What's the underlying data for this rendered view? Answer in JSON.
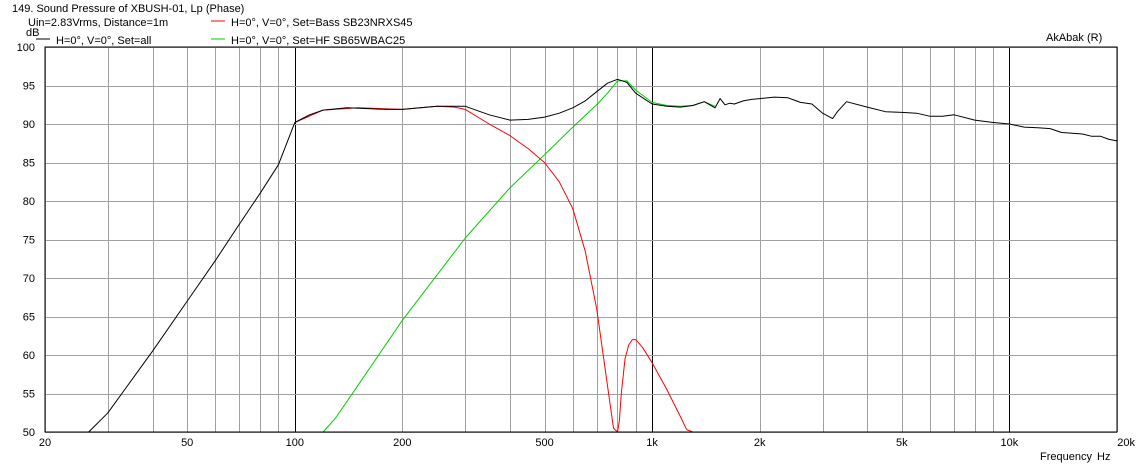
{
  "chart_data": {
    "type": "line",
    "title": "149. Sound Pressure of XBUSH-01, Lp (Phase)",
    "subtitle": "Uin=2.83Vrms, Distance=1m",
    "ylabel": "dB",
    "xlabel": "Frequency",
    "xunit": "Hz",
    "watermark": "AkAbak (R)",
    "xscale": "log",
    "xlim": [
      20,
      20000
    ],
    "ylim": [
      50,
      100
    ],
    "grid": true,
    "legend_position": "top-left",
    "x_ticks": [
      {
        "value": 20,
        "label": "20"
      },
      {
        "value": 50,
        "label": "50"
      },
      {
        "value": 100,
        "label": "100"
      },
      {
        "value": 200,
        "label": "200"
      },
      {
        "value": 500,
        "label": "500"
      },
      {
        "value": 1000,
        "label": "1k"
      },
      {
        "value": 2000,
        "label": "2k"
      },
      {
        "value": 5000,
        "label": "5k"
      },
      {
        "value": 10000,
        "label": "10k"
      },
      {
        "value": 20000,
        "label": "20k"
      }
    ],
    "y_ticks": [
      {
        "value": 100,
        "label": "100"
      },
      {
        "value": 95,
        "label": "95"
      },
      {
        "value": 90,
        "label": "90"
      },
      {
        "value": 85,
        "label": "85"
      },
      {
        "value": 80,
        "label": "80"
      },
      {
        "value": 75,
        "label": "75"
      },
      {
        "value": 70,
        "label": "70"
      },
      {
        "value": 65,
        "label": "65"
      },
      {
        "value": 60,
        "label": "60"
      },
      {
        "value": 55,
        "label": "55"
      },
      {
        "value": 50,
        "label": "50"
      }
    ],
    "series": [
      {
        "name": "H=0°, V=0°, Set=all",
        "color": "#000000",
        "x": [
          20,
          26.5,
          30,
          40,
          50,
          60,
          70,
          80,
          90,
          100,
          110,
          120,
          140,
          160,
          180,
          200,
          250,
          300,
          350,
          400,
          450,
          500,
          550,
          600,
          650,
          700,
          750,
          800,
          850,
          900,
          1000,
          1100,
          1200,
          1300,
          1400,
          1500,
          1550,
          1600,
          1650,
          1700,
          1800,
          1900,
          2000,
          2200,
          2400,
          2500,
          2600,
          2800,
          3000,
          3200,
          3300,
          3500,
          4000,
          4500,
          5000,
          5500,
          6000,
          6500,
          7000,
          8000,
          9000,
          10000,
          11000,
          12000,
          13000,
          14000,
          15000,
          16000,
          17000,
          18000,
          19000,
          20000
        ],
        "y": [
          50,
          50,
          52.5,
          60.5,
          67,
          72.3,
          77,
          81,
          84.7,
          90.2,
          91.2,
          91.8,
          92.1,
          92.0,
          91.9,
          91.9,
          92.3,
          92.3,
          91.2,
          90.5,
          90.6,
          90.9,
          91.4,
          92.1,
          93.0,
          94.2,
          95.3,
          95.8,
          95.4,
          94.0,
          92.6,
          92.3,
          92.2,
          92.4,
          92.9,
          92.1,
          93.3,
          92.5,
          92.7,
          92.6,
          93.0,
          93.2,
          93.3,
          93.5,
          93.4,
          93.1,
          92.8,
          92.6,
          91.4,
          90.7,
          91.6,
          92.9,
          92.2,
          91.6,
          91.5,
          91.4,
          91.0,
          91.0,
          91.2,
          90.5,
          90.2,
          90.0,
          89.6,
          89.5,
          89.4,
          88.9,
          88.8,
          88.7,
          88.4,
          88.4,
          88.0,
          87.8
        ]
      },
      {
        "name": "H=0°, V=0°, Set=Bass SB23NRXS45",
        "color": "#ff0000",
        "x": [
          100,
          120,
          150,
          200,
          250,
          280,
          300,
          350,
          400,
          450,
          500,
          550,
          600,
          650,
          700,
          750,
          780,
          800,
          810,
          820,
          840,
          860,
          880,
          900,
          940,
          1000,
          1100,
          1200,
          1250,
          1300,
          2000,
          5000,
          10000,
          20000
        ],
        "y": [
          90.2,
          91.8,
          92.1,
          91.9,
          92.3,
          92.2,
          91.9,
          90.0,
          88.5,
          86.8,
          85.0,
          82.5,
          79.0,
          73.5,
          66.0,
          56.0,
          50.5,
          50.0,
          51.5,
          55.0,
          59.5,
          61.3,
          62.0,
          62.0,
          61.0,
          59.0,
          55.5,
          52.0,
          50.3,
          50.0,
          50.0,
          50.0,
          50.0,
          50.0
        ]
      },
      {
        "name": "H=0°, V=0°, Set=HF SB65WBAC25",
        "color": "#00cc00",
        "x": [
          26.5,
          100,
          120,
          130,
          150,
          200,
          300,
          400,
          500,
          600,
          700,
          750,
          800,
          850,
          900,
          1000,
          1100,
          1200,
          1300,
          1400,
          1500
        ],
        "y": [
          50,
          50,
          50,
          51.8,
          56.0,
          64.5,
          75.2,
          81.7,
          86.0,
          89.6,
          92.5,
          94.0,
          95.6,
          95.6,
          94.4,
          92.8,
          92.4,
          92.3,
          92.4,
          92.9,
          92.3
        ]
      }
    ]
  }
}
